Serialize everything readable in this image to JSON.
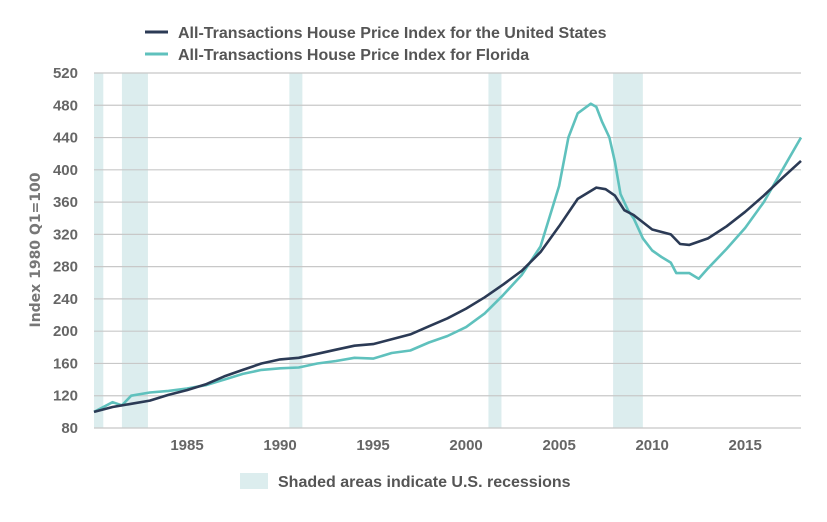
{
  "chart_data": {
    "type": "line",
    "title": "",
    "xlabel": "",
    "ylabel": "Index 1980 Q1=100",
    "xlim": [
      1980,
      2018
    ],
    "ylim": [
      80,
      520
    ],
    "x_ticks": [
      "1985",
      "1990",
      "1995",
      "2000",
      "2005",
      "2010",
      "2015"
    ],
    "y_ticks": [
      "80",
      "120",
      "160",
      "200",
      "240",
      "280",
      "320",
      "360",
      "400",
      "440",
      "480",
      "520"
    ],
    "grid": "horizontal",
    "legend": "top",
    "recession_note": "Shaded areas indicate U.S. recessions",
    "recessions": [
      [
        1980.0,
        1980.5
      ],
      [
        1981.5,
        1982.9
      ],
      [
        1990.5,
        1991.2
      ],
      [
        2001.2,
        2001.9
      ],
      [
        2007.9,
        2009.5
      ]
    ],
    "colors": {
      "us": "#2b3a55",
      "florida": "#5fc1bd",
      "recession": "#dcedee",
      "grid": "#c8c8c8"
    },
    "series": [
      {
        "name": "All-Transactions House Price Index for the United States",
        "key": "us",
        "x": [
          1980,
          1981,
          1982,
          1983,
          1984,
          1985,
          1986,
          1987,
          1988,
          1989,
          1990,
          1991,
          1992,
          1993,
          1994,
          1995,
          1996,
          1997,
          1998,
          1999,
          2000,
          2001,
          2002,
          2003,
          2004,
          2005,
          2006,
          2007,
          2007.5,
          2008,
          2008.5,
          2009,
          2010,
          2011,
          2011.5,
          2012,
          2013,
          2014,
          2015,
          2016,
          2017,
          2018
        ],
        "values": [
          100,
          106,
          110,
          114,
          121,
          127,
          134,
          144,
          152,
          160,
          165,
          167,
          172,
          177,
          182,
          184,
          190,
          196,
          206,
          216,
          228,
          242,
          258,
          275,
          298,
          330,
          364,
          378,
          376,
          368,
          350,
          344,
          326,
          320,
          308,
          307,
          315,
          330,
          348,
          368,
          390,
          411
        ]
      },
      {
        "name": "All-Transactions House Price Index for Florida",
        "key": "florida",
        "x": [
          1980,
          1981,
          1981.5,
          1982,
          1983,
          1984,
          1985,
          1986,
          1987,
          1988,
          1989,
          1990,
          1991,
          1992,
          1993,
          1994,
          1995,
          1996,
          1997,
          1998,
          1999,
          2000,
          2001,
          2002,
          2003,
          2004,
          2005,
          2005.5,
          2006,
          2006.7,
          2007,
          2007.3,
          2007.7,
          2008,
          2008.3,
          2008.7,
          2009,
          2009.5,
          2010,
          2010.5,
          2011,
          2011.3,
          2012,
          2012.5,
          2013,
          2014,
          2015,
          2016,
          2017,
          2018
        ],
        "values": [
          100,
          112,
          108,
          120,
          124,
          126,
          129,
          133,
          140,
          147,
          152,
          154,
          155,
          160,
          163,
          167,
          166,
          173,
          176,
          186,
          194,
          205,
          222,
          245,
          270,
          305,
          380,
          440,
          470,
          482,
          478,
          460,
          440,
          410,
          370,
          350,
          340,
          315,
          300,
          292,
          285,
          272,
          272,
          265,
          278,
          302,
          328,
          360,
          400,
          440
        ]
      }
    ]
  }
}
